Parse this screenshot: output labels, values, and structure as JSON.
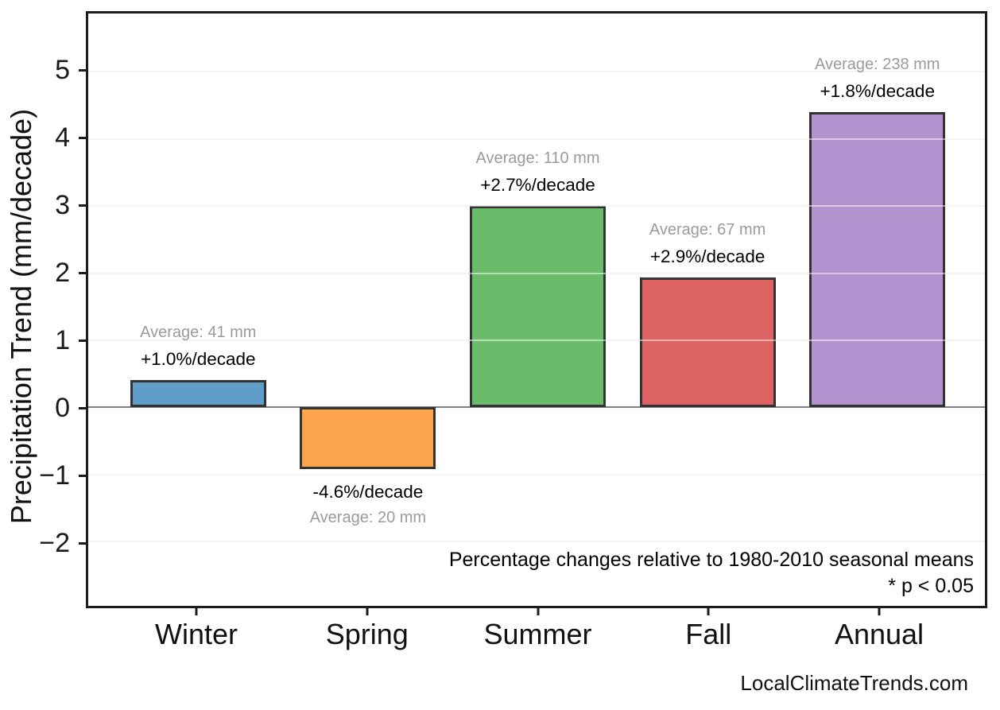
{
  "chart_data": {
    "type": "bar",
    "categories": [
      "Winter",
      "Spring",
      "Summer",
      "Fall",
      "Annual"
    ],
    "values": [
      0.41,
      -0.92,
      3.0,
      1.94,
      4.4
    ],
    "title": "",
    "xlabel": "",
    "ylabel": "Precipitation Trend (mm/decade)",
    "ylim": [
      -2.96,
      5.87
    ],
    "ytick_values": [
      5,
      4,
      3,
      2,
      1,
      0,
      -1,
      -2
    ],
    "grid": "horizontal gridlines at integers, light gray; zero line darker gray",
    "legend": "none",
    "bar_colors": [
      "#5E9DC8",
      "#FBA44C",
      "#6ABC6B",
      "#DE6463",
      "#B292CF"
    ],
    "bar_edge_color": "#333333",
    "zero_line_color": "#7f7f7f",
    "grid_color": "#e9e9e9",
    "annotations": [
      {
        "category": "Winter",
        "average": "Average: 41 mm",
        "trend": "+1.0%/decade",
        "average_mm": 41,
        "trend_pct_per_decade": 1.0
      },
      {
        "category": "Spring",
        "average": "Average: 20 mm",
        "trend": "-4.6%/decade",
        "average_mm": 20,
        "trend_pct_per_decade": -4.6
      },
      {
        "category": "Summer",
        "average": "Average: 110 mm",
        "trend": "+2.7%/decade",
        "average_mm": 110,
        "trend_pct_per_decade": 2.7
      },
      {
        "category": "Fall",
        "average": "Average: 67 mm",
        "trend": "+2.9%/decade",
        "average_mm": 67,
        "trend_pct_per_decade": 2.9
      },
      {
        "category": "Annual",
        "average": "Average: 238 mm",
        "trend": "+1.8%/decade",
        "average_mm": 238,
        "trend_pct_per_decade": 1.8
      }
    ],
    "footnote_line1": "Percentage changes relative to 1980-2010 seasonal means",
    "footnote_line2": "* p < 0.05",
    "annotation_avg_color": "#9b9b9b",
    "annotation_trend_color": "#000000"
  },
  "watermark": "LocalClimateTrends.com"
}
